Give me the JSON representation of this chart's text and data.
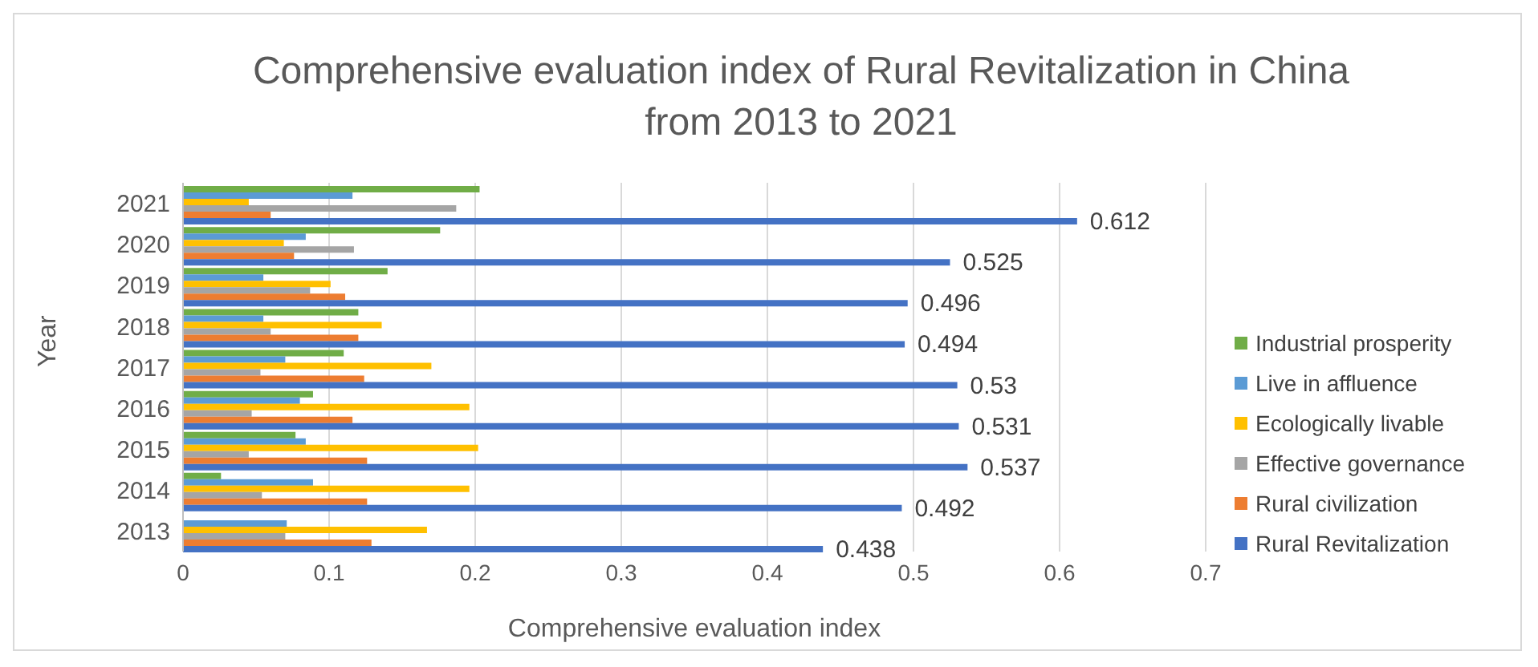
{
  "chart_data": {
    "type": "bar",
    "orientation": "horizontal",
    "title": "Comprehensive evaluation index of Rural Revitalization in China from 2013 to 2021",
    "xlabel": "Comprehensive evaluation index",
    "ylabel": "Year",
    "categories": [
      "2021",
      "2020",
      "2019",
      "2018",
      "2017",
      "2016",
      "2015",
      "2014",
      "2013"
    ],
    "series": [
      {
        "name": "Industrial prosperity",
        "color": "#70ad47",
        "values": [
          0.203,
          0.176,
          0.14,
          0.12,
          0.11,
          0.089,
          0.077,
          0.026,
          0
        ]
      },
      {
        "name": "Live in affluence",
        "color": "#5b9bd5",
        "values": [
          0.116,
          0.084,
          0.055,
          0.055,
          0.07,
          0.08,
          0.084,
          0.089,
          0.071
        ]
      },
      {
        "name": "Ecologically livable",
        "color": "#ffc000",
        "values": [
          0.045,
          0.069,
          0.101,
          0.136,
          0.17,
          0.196,
          0.202,
          0.196,
          0.167
        ]
      },
      {
        "name": "Effective governance",
        "color": "#a5a5a5",
        "values": [
          0.187,
          0.117,
          0.087,
          0.06,
          0.053,
          0.047,
          0.045,
          0.054,
          0.07
        ]
      },
      {
        "name": "Rural civilization",
        "color": "#ed7d31",
        "values": [
          0.06,
          0.076,
          0.111,
          0.12,
          0.124,
          0.116,
          0.126,
          0.126,
          0.129
        ]
      },
      {
        "name": "Rural Revitalization",
        "color": "#4472c4",
        "values": [
          0.612,
          0.525,
          0.496,
          0.494,
          0.53,
          0.531,
          0.537,
          0.492,
          0.438
        ],
        "value_labels": [
          "0.612",
          "0.525",
          "0.496",
          "0.494",
          "0.53",
          "0.531",
          "0.537",
          "0.492",
          "0.438"
        ]
      }
    ],
    "xlim": [
      0,
      0.7
    ],
    "xticks": [
      0,
      0.1,
      0.2,
      0.3,
      0.4,
      0.5,
      0.6,
      0.7
    ],
    "grid": "x",
    "legend": "right"
  }
}
